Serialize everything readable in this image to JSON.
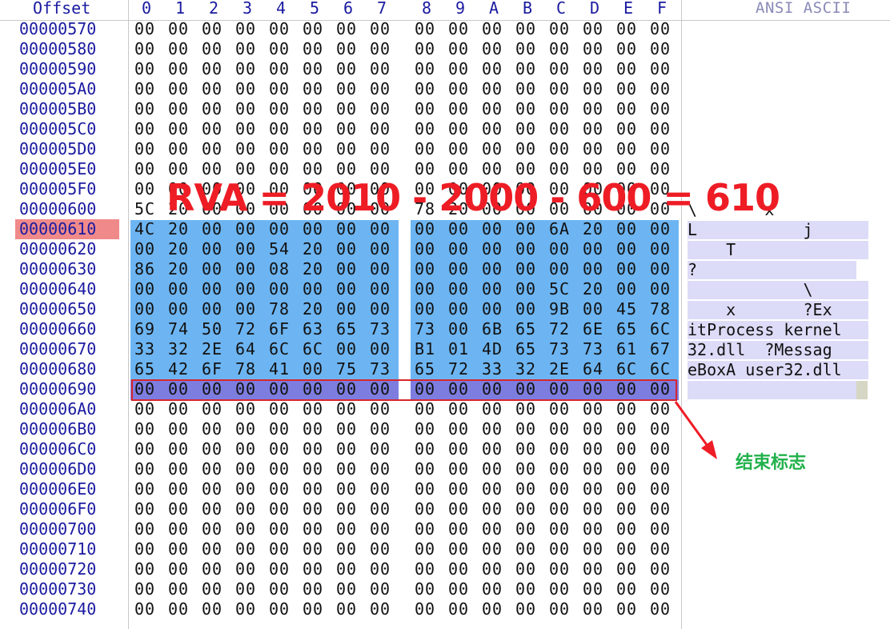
{
  "header": {
    "offset_label": "Offset",
    "columns": [
      "0",
      "1",
      "2",
      "3",
      "4",
      "5",
      "6",
      "7",
      "8",
      "9",
      "A",
      "B",
      "C",
      "D",
      "E",
      "F"
    ],
    "ascii_label": "ANSI ASCII"
  },
  "rows": [
    {
      "offset": "00000570",
      "bytes": [
        "00",
        "00",
        "00",
        "00",
        "00",
        "00",
        "00",
        "00",
        "00",
        "00",
        "00",
        "00",
        "00",
        "00",
        "00",
        "00"
      ],
      "ascii": "",
      "state": "normal"
    },
    {
      "offset": "00000580",
      "bytes": [
        "00",
        "00",
        "00",
        "00",
        "00",
        "00",
        "00",
        "00",
        "00",
        "00",
        "00",
        "00",
        "00",
        "00",
        "00",
        "00"
      ],
      "ascii": "",
      "state": "normal"
    },
    {
      "offset": "00000590",
      "bytes": [
        "00",
        "00",
        "00",
        "00",
        "00",
        "00",
        "00",
        "00",
        "00",
        "00",
        "00",
        "00",
        "00",
        "00",
        "00",
        "00"
      ],
      "ascii": "",
      "state": "normal"
    },
    {
      "offset": "000005A0",
      "bytes": [
        "00",
        "00",
        "00",
        "00",
        "00",
        "00",
        "00",
        "00",
        "00",
        "00",
        "00",
        "00",
        "00",
        "00",
        "00",
        "00"
      ],
      "ascii": "",
      "state": "normal"
    },
    {
      "offset": "000005B0",
      "bytes": [
        "00",
        "00",
        "00",
        "00",
        "00",
        "00",
        "00",
        "00",
        "00",
        "00",
        "00",
        "00",
        "00",
        "00",
        "00",
        "00"
      ],
      "ascii": "",
      "state": "normal"
    },
    {
      "offset": "000005C0",
      "bytes": [
        "00",
        "00",
        "00",
        "00",
        "00",
        "00",
        "00",
        "00",
        "00",
        "00",
        "00",
        "00",
        "00",
        "00",
        "00",
        "00"
      ],
      "ascii": "",
      "state": "normal"
    },
    {
      "offset": "000005D0",
      "bytes": [
        "00",
        "00",
        "00",
        "00",
        "00",
        "00",
        "00",
        "00",
        "00",
        "00",
        "00",
        "00",
        "00",
        "00",
        "00",
        "00"
      ],
      "ascii": "",
      "state": "normal"
    },
    {
      "offset": "000005E0",
      "bytes": [
        "00",
        "00",
        "00",
        "00",
        "00",
        "00",
        "00",
        "00",
        "00",
        "00",
        "00",
        "00",
        "00",
        "00",
        "00",
        "00"
      ],
      "ascii": "",
      "state": "normal"
    },
    {
      "offset": "000005F0",
      "bytes": [
        "00",
        "00",
        "00",
        "00",
        "00",
        "00",
        "00",
        "00",
        "00",
        "00",
        "00",
        "00",
        "00",
        "00",
        "00",
        "00"
      ],
      "ascii": "",
      "state": "normal"
    },
    {
      "offset": "00000600",
      "bytes": [
        "5C",
        "20",
        "00",
        "00",
        "00",
        "00",
        "00",
        "00",
        "78",
        "20",
        "00",
        "00",
        "00",
        "00",
        "00",
        "00"
      ],
      "ascii": "\\       x",
      "state": "normal"
    },
    {
      "offset": "00000610",
      "bytes": [
        "4C",
        "20",
        "00",
        "00",
        "00",
        "00",
        "00",
        "00",
        "00",
        "00",
        "00",
        "00",
        "6A",
        "20",
        "00",
        "00"
      ],
      "ascii": "L           j",
      "state": "selected",
      "offset_highlight": true
    },
    {
      "offset": "00000620",
      "bytes": [
        "00",
        "20",
        "00",
        "00",
        "54",
        "20",
        "00",
        "00",
        "00",
        "00",
        "00",
        "00",
        "00",
        "00",
        "00",
        "00"
      ],
      "ascii": "    T",
      "state": "selected"
    },
    {
      "offset": "00000630",
      "bytes": [
        "86",
        "20",
        "00",
        "00",
        "08",
        "20",
        "00",
        "00",
        "00",
        "00",
        "00",
        "00",
        "00",
        "00",
        "00",
        "00"
      ],
      "ascii": "?",
      "state": "selected"
    },
    {
      "offset": "00000640",
      "bytes": [
        "00",
        "00",
        "00",
        "00",
        "00",
        "00",
        "00",
        "00",
        "00",
        "00",
        "00",
        "00",
        "5C",
        "20",
        "00",
        "00"
      ],
      "ascii": "            \\",
      "state": "selected"
    },
    {
      "offset": "00000650",
      "bytes": [
        "00",
        "00",
        "00",
        "00",
        "78",
        "20",
        "00",
        "00",
        "00",
        "00",
        "00",
        "00",
        "9B",
        "00",
        "45",
        "78"
      ],
      "ascii": "    x       ?Ex",
      "state": "selected"
    },
    {
      "offset": "00000660",
      "bytes": [
        "69",
        "74",
        "50",
        "72",
        "6F",
        "63",
        "65",
        "73",
        "73",
        "00",
        "6B",
        "65",
        "72",
        "6E",
        "65",
        "6C"
      ],
      "ascii": "itProcess kernel",
      "state": "selected"
    },
    {
      "offset": "00000670",
      "bytes": [
        "33",
        "32",
        "2E",
        "64",
        "6C",
        "6C",
        "00",
        "00",
        "B1",
        "01",
        "4D",
        "65",
        "73",
        "73",
        "61",
        "67"
      ],
      "ascii": "32.dll  ?Messag",
      "state": "selected"
    },
    {
      "offset": "00000680",
      "bytes": [
        "65",
        "42",
        "6F",
        "78",
        "41",
        "00",
        "75",
        "73",
        "65",
        "72",
        "33",
        "32",
        "2E",
        "64",
        "6C",
        "6C"
      ],
      "ascii": "eBoxA user32.dll",
      "state": "selected"
    },
    {
      "offset": "00000690",
      "bytes": [
        "00",
        "00",
        "00",
        "00",
        "00",
        "00",
        "00",
        "00",
        "00",
        "00",
        "00",
        "00",
        "00",
        "00",
        "00",
        "00"
      ],
      "ascii": "",
      "state": "end"
    },
    {
      "offset": "000006A0",
      "bytes": [
        "00",
        "00",
        "00",
        "00",
        "00",
        "00",
        "00",
        "00",
        "00",
        "00",
        "00",
        "00",
        "00",
        "00",
        "00",
        "00"
      ],
      "ascii": "",
      "state": "normal"
    },
    {
      "offset": "000006B0",
      "bytes": [
        "00",
        "00",
        "00",
        "00",
        "00",
        "00",
        "00",
        "00",
        "00",
        "00",
        "00",
        "00",
        "00",
        "00",
        "00",
        "00"
      ],
      "ascii": "",
      "state": "normal"
    },
    {
      "offset": "000006C0",
      "bytes": [
        "00",
        "00",
        "00",
        "00",
        "00",
        "00",
        "00",
        "00",
        "00",
        "00",
        "00",
        "00",
        "00",
        "00",
        "00",
        "00"
      ],
      "ascii": "",
      "state": "normal"
    },
    {
      "offset": "000006D0",
      "bytes": [
        "00",
        "00",
        "00",
        "00",
        "00",
        "00",
        "00",
        "00",
        "00",
        "00",
        "00",
        "00",
        "00",
        "00",
        "00",
        "00"
      ],
      "ascii": "",
      "state": "normal"
    },
    {
      "offset": "000006E0",
      "bytes": [
        "00",
        "00",
        "00",
        "00",
        "00",
        "00",
        "00",
        "00",
        "00",
        "00",
        "00",
        "00",
        "00",
        "00",
        "00",
        "00"
      ],
      "ascii": "",
      "state": "normal"
    },
    {
      "offset": "000006F0",
      "bytes": [
        "00",
        "00",
        "00",
        "00",
        "00",
        "00",
        "00",
        "00",
        "00",
        "00",
        "00",
        "00",
        "00",
        "00",
        "00",
        "00"
      ],
      "ascii": "",
      "state": "normal"
    },
    {
      "offset": "00000700",
      "bytes": [
        "00",
        "00",
        "00",
        "00",
        "00",
        "00",
        "00",
        "00",
        "00",
        "00",
        "00",
        "00",
        "00",
        "00",
        "00",
        "00"
      ],
      "ascii": "",
      "state": "normal"
    },
    {
      "offset": "00000710",
      "bytes": [
        "00",
        "00",
        "00",
        "00",
        "00",
        "00",
        "00",
        "00",
        "00",
        "00",
        "00",
        "00",
        "00",
        "00",
        "00",
        "00"
      ],
      "ascii": "",
      "state": "normal"
    },
    {
      "offset": "00000720",
      "bytes": [
        "00",
        "00",
        "00",
        "00",
        "00",
        "00",
        "00",
        "00",
        "00",
        "00",
        "00",
        "00",
        "00",
        "00",
        "00",
        "00"
      ],
      "ascii": "",
      "state": "normal"
    },
    {
      "offset": "00000730",
      "bytes": [
        "00",
        "00",
        "00",
        "00",
        "00",
        "00",
        "00",
        "00",
        "00",
        "00",
        "00",
        "00",
        "00",
        "00",
        "00",
        "00"
      ],
      "ascii": "",
      "state": "normal"
    },
    {
      "offset": "00000740",
      "bytes": [
        "00",
        "00",
        "00",
        "00",
        "00",
        "00",
        "00",
        "00",
        "00",
        "00",
        "00",
        "00",
        "00",
        "00",
        "00",
        "00"
      ],
      "ascii": "",
      "state": "normal"
    }
  ],
  "annotations": {
    "rva_text": "RVA = 2010 - 2000 - 600 = 610",
    "end_label": "结束标志"
  },
  "colors": {
    "offset_blue": "#1a1aa0",
    "selection_blue": "#6db5f2",
    "end_row_purple": "#7d7de0",
    "offset_highlight": "#f08a8a",
    "annotation_red": "#ee1c25",
    "annotation_green": "#22b14c"
  }
}
